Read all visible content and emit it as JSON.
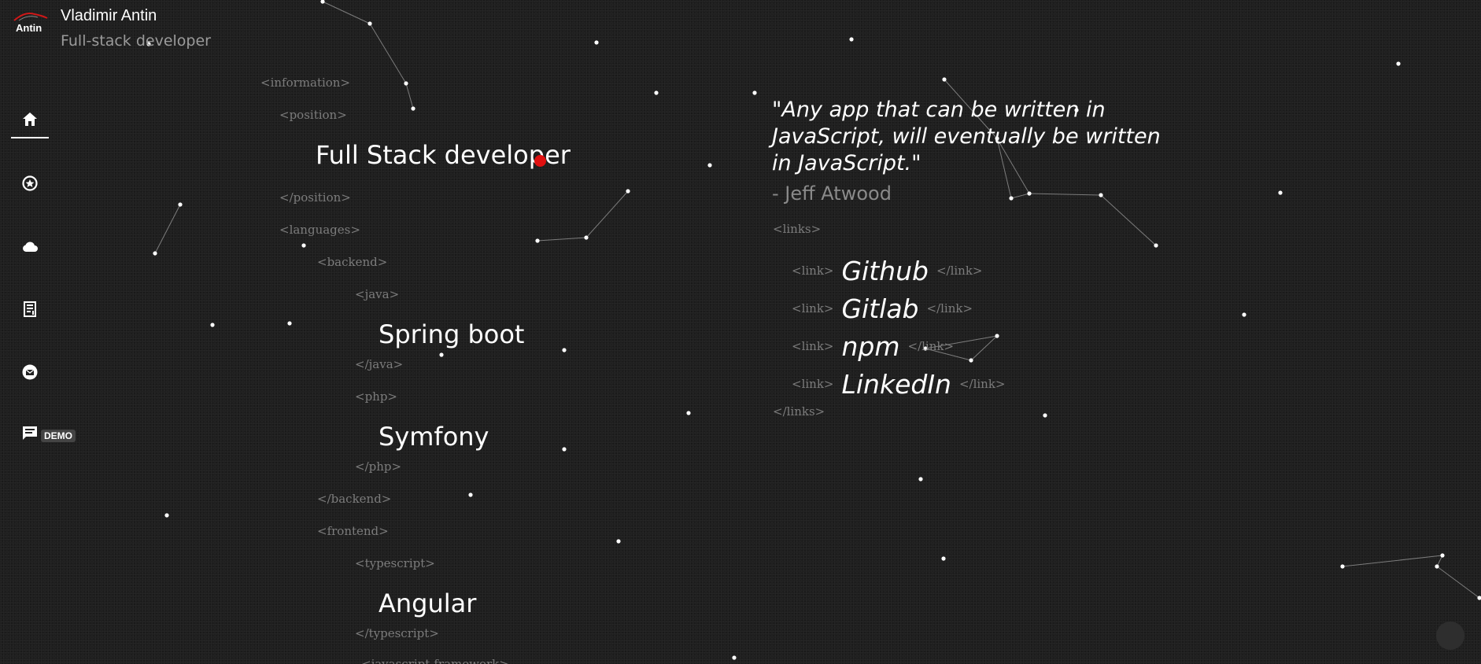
{
  "header": {
    "logo_text": "Antin",
    "name": "Vladimir Antin",
    "role": "Full-stack developer"
  },
  "sidebar": {
    "items": [
      {
        "icon": "home-icon",
        "label": ""
      },
      {
        "icon": "skills-icon",
        "label": ""
      },
      {
        "icon": "cloud-icon",
        "label": ""
      },
      {
        "icon": "document-icon",
        "label": ""
      },
      {
        "icon": "mail-icon",
        "label": ""
      },
      {
        "icon": "chat-icon",
        "label": "DEMO"
      }
    ]
  },
  "info": {
    "information_open": "<information>",
    "position_open": "<position>",
    "position_value": "Full Stack developer",
    "position_close": "</position>",
    "languages_open": "<languages>",
    "backend_open": "<backend>",
    "java_open": "<java>",
    "java_value": "Spring boot",
    "java_close": "</java>",
    "php_open": "<php>",
    "php_value": "Symfony",
    "php_close": "</php>",
    "backend_close": "</backend>",
    "frontend_open": "<frontend>",
    "typescript_open": "<typescript>",
    "typescript_value": "Angular",
    "typescript_close": "</typescript>",
    "javascript_open": "<javascript-framework>"
  },
  "quote": {
    "text": "\"Any app that can be written in JavaScript, will eventually be written in JavaScript.\"",
    "author": "- Jeff Atwood"
  },
  "links": {
    "open": "<links>",
    "close": "</links>",
    "link_open": "<link>",
    "link_close": "</link>",
    "items": [
      "Github",
      "Gitlab",
      "npm",
      "LinkedIn"
    ]
  },
  "colors": {
    "background": "#1f1f1f",
    "accent": "#e01010",
    "tag": "#7c7c7c"
  }
}
